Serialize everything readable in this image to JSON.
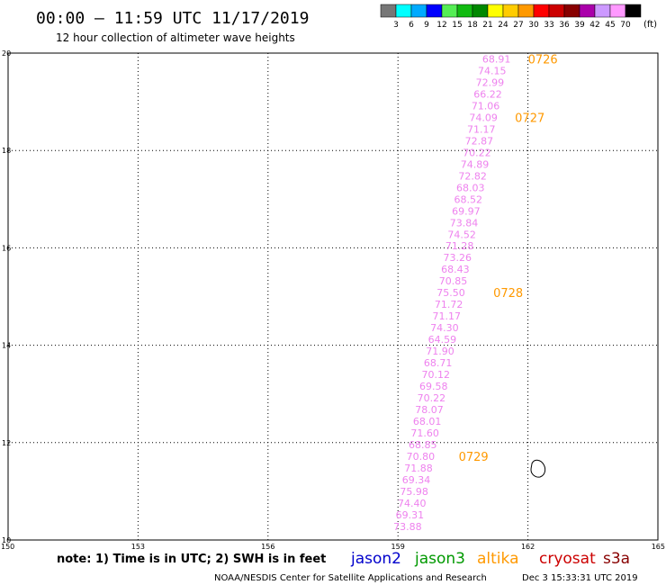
{
  "header": {
    "title": "00:00 – 11:59 UTC 11/17/2019",
    "subtitle": "12 hour collection of altimeter wave heights"
  },
  "colorbar": {
    "unit": "(ft)",
    "labels": [
      "3",
      "6",
      "9",
      "12",
      "15",
      "18",
      "21",
      "24",
      "27",
      "30",
      "33",
      "36",
      "39",
      "42",
      "45",
      "70"
    ],
    "colors": [
      "#777777",
      "#00ffff",
      "#00aaff",
      "#0000ff",
      "#55ee55",
      "#11bb11",
      "#008800",
      "#ffff00",
      "#ffcc00",
      "#ff9900",
      "#ff0000",
      "#cc0000",
      "#880000",
      "#aa00aa",
      "#cc99ff",
      "#ff99ff",
      "#000000"
    ]
  },
  "chart_data": {
    "type": "scatter",
    "xlim": [
      150,
      165
    ],
    "ylim": [
      10,
      20
    ],
    "x_ticks": [
      "150",
      "153",
      "156",
      "159",
      "162",
      "165"
    ],
    "y_ticks": [
      "10",
      "12",
      "14",
      "16",
      "18",
      "20"
    ],
    "grid": true,
    "point_color": "#ee82ee",
    "time_color": "#ff9900",
    "points": [
      {
        "lon": 161.6,
        "lat": 19.88,
        "label": "68.91"
      },
      {
        "lon": 161.5,
        "lat": 19.64,
        "label": "74.15"
      },
      {
        "lon": 161.45,
        "lat": 19.4,
        "label": "72.99"
      },
      {
        "lon": 161.4,
        "lat": 19.16,
        "label": "66.22"
      },
      {
        "lon": 161.35,
        "lat": 18.92,
        "label": "71.06"
      },
      {
        "lon": 161.3,
        "lat": 18.68,
        "label": "74.09"
      },
      {
        "lon": 161.25,
        "lat": 18.44,
        "label": "71.17"
      },
      {
        "lon": 161.2,
        "lat": 18.2,
        "label": "72.87"
      },
      {
        "lon": 161.15,
        "lat": 17.96,
        "label": "70.22"
      },
      {
        "lon": 161.1,
        "lat": 17.72,
        "label": "74.89"
      },
      {
        "lon": 161.05,
        "lat": 17.48,
        "label": "72.82"
      },
      {
        "lon": 161.0,
        "lat": 17.24,
        "label": "68.03"
      },
      {
        "lon": 160.95,
        "lat": 17.0,
        "label": "68.52"
      },
      {
        "lon": 160.9,
        "lat": 16.76,
        "label": "69.97"
      },
      {
        "lon": 160.85,
        "lat": 16.52,
        "label": "73.84"
      },
      {
        "lon": 160.8,
        "lat": 16.28,
        "label": "74.52"
      },
      {
        "lon": 160.75,
        "lat": 16.04,
        "label": "71.28"
      },
      {
        "lon": 160.7,
        "lat": 15.8,
        "label": "73.26"
      },
      {
        "lon": 160.65,
        "lat": 15.56,
        "label": "68.43"
      },
      {
        "lon": 160.6,
        "lat": 15.32,
        "label": "70.85"
      },
      {
        "lon": 160.55,
        "lat": 15.08,
        "label": "75.50"
      },
      {
        "lon": 160.5,
        "lat": 14.84,
        "label": "71.72"
      },
      {
        "lon": 160.45,
        "lat": 14.6,
        "label": "71.17"
      },
      {
        "lon": 160.4,
        "lat": 14.36,
        "label": "74.30"
      },
      {
        "lon": 160.35,
        "lat": 14.12,
        "label": "64.59"
      },
      {
        "lon": 160.3,
        "lat": 13.88,
        "label": "71.90"
      },
      {
        "lon": 160.25,
        "lat": 13.64,
        "label": "68.71"
      },
      {
        "lon": 160.2,
        "lat": 13.4,
        "label": "70.12"
      },
      {
        "lon": 160.15,
        "lat": 13.16,
        "label": "69.58"
      },
      {
        "lon": 160.1,
        "lat": 12.92,
        "label": "70.22"
      },
      {
        "lon": 160.05,
        "lat": 12.68,
        "label": "78.07"
      },
      {
        "lon": 160.0,
        "lat": 12.44,
        "label": "68.01"
      },
      {
        "lon": 159.95,
        "lat": 12.2,
        "label": "71.60"
      },
      {
        "lon": 159.9,
        "lat": 11.96,
        "label": "68.85"
      },
      {
        "lon": 159.85,
        "lat": 11.72,
        "label": "70.80"
      },
      {
        "lon": 159.8,
        "lat": 11.48,
        "label": "71.88"
      },
      {
        "lon": 159.75,
        "lat": 11.24,
        "label": "69.34"
      },
      {
        "lon": 159.7,
        "lat": 11.0,
        "label": "75.98"
      },
      {
        "lon": 159.65,
        "lat": 10.76,
        "label": "74.40"
      },
      {
        "lon": 159.6,
        "lat": 10.52,
        "label": "69.31"
      },
      {
        "lon": 159.55,
        "lat": 10.28,
        "label": "73.88"
      }
    ],
    "time_labels": [
      {
        "text": "0726",
        "lon": 162.0,
        "lat": 19.88
      },
      {
        "text": "0727",
        "lon": 161.7,
        "lat": 18.68
      },
      {
        "text": "0728",
        "lon": 161.2,
        "lat": 15.08
      },
      {
        "text": "0729",
        "lon": 160.4,
        "lat": 11.72
      }
    ]
  },
  "footer": {
    "note": "note: 1) Time is in UTC; 2) SWH is in feet",
    "satellites": [
      {
        "name": "jason2",
        "color": "#0000cc"
      },
      {
        "name": "jason3",
        "color": "#009900"
      },
      {
        "name": "altika",
        "color": "#ff9900"
      },
      {
        "name": "cryosat",
        "color": "#cc0000"
      },
      {
        "name": "s3a",
        "color": "#880000"
      }
    ],
    "credit": "NOAA/NESDIS Center for Satellite Applications and Research",
    "timestamp": "Dec  3 15:33:31 UTC 2019"
  }
}
